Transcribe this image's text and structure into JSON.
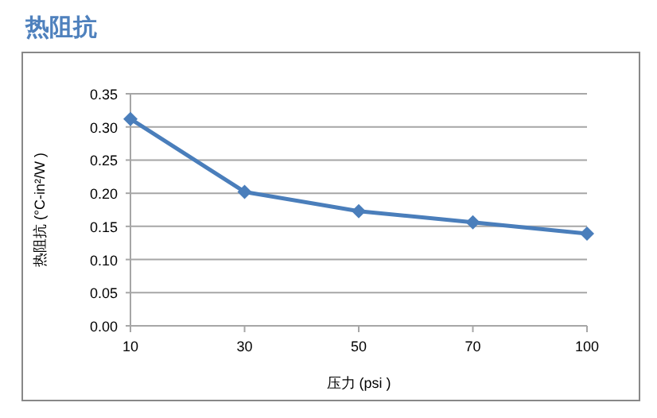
{
  "chart_data": {
    "type": "line",
    "title": "热阻抗",
    "xlabel": "压力 (psi )",
    "ylabel": "热阻抗 (°C-in²/W )",
    "categories": [
      "10",
      "30",
      "50",
      "70",
      "100"
    ],
    "values": [
      0.312,
      0.202,
      0.173,
      0.156,
      0.139
    ],
    "color": "#4a7ebb",
    "ylim": [
      0,
      0.35
    ],
    "yticks": [
      {
        "value": 0,
        "label": "0.00"
      },
      0.05,
      {
        "value": 0.1,
        "label": "0.10"
      },
      0.15,
      {
        "value": 0.2,
        "label": "0.20"
      },
      0.25,
      {
        "value": 0.3,
        "label": "0.30"
      },
      0.35
    ],
    "grid": "y",
    "marker": "diamond",
    "line_style": "solid"
  }
}
